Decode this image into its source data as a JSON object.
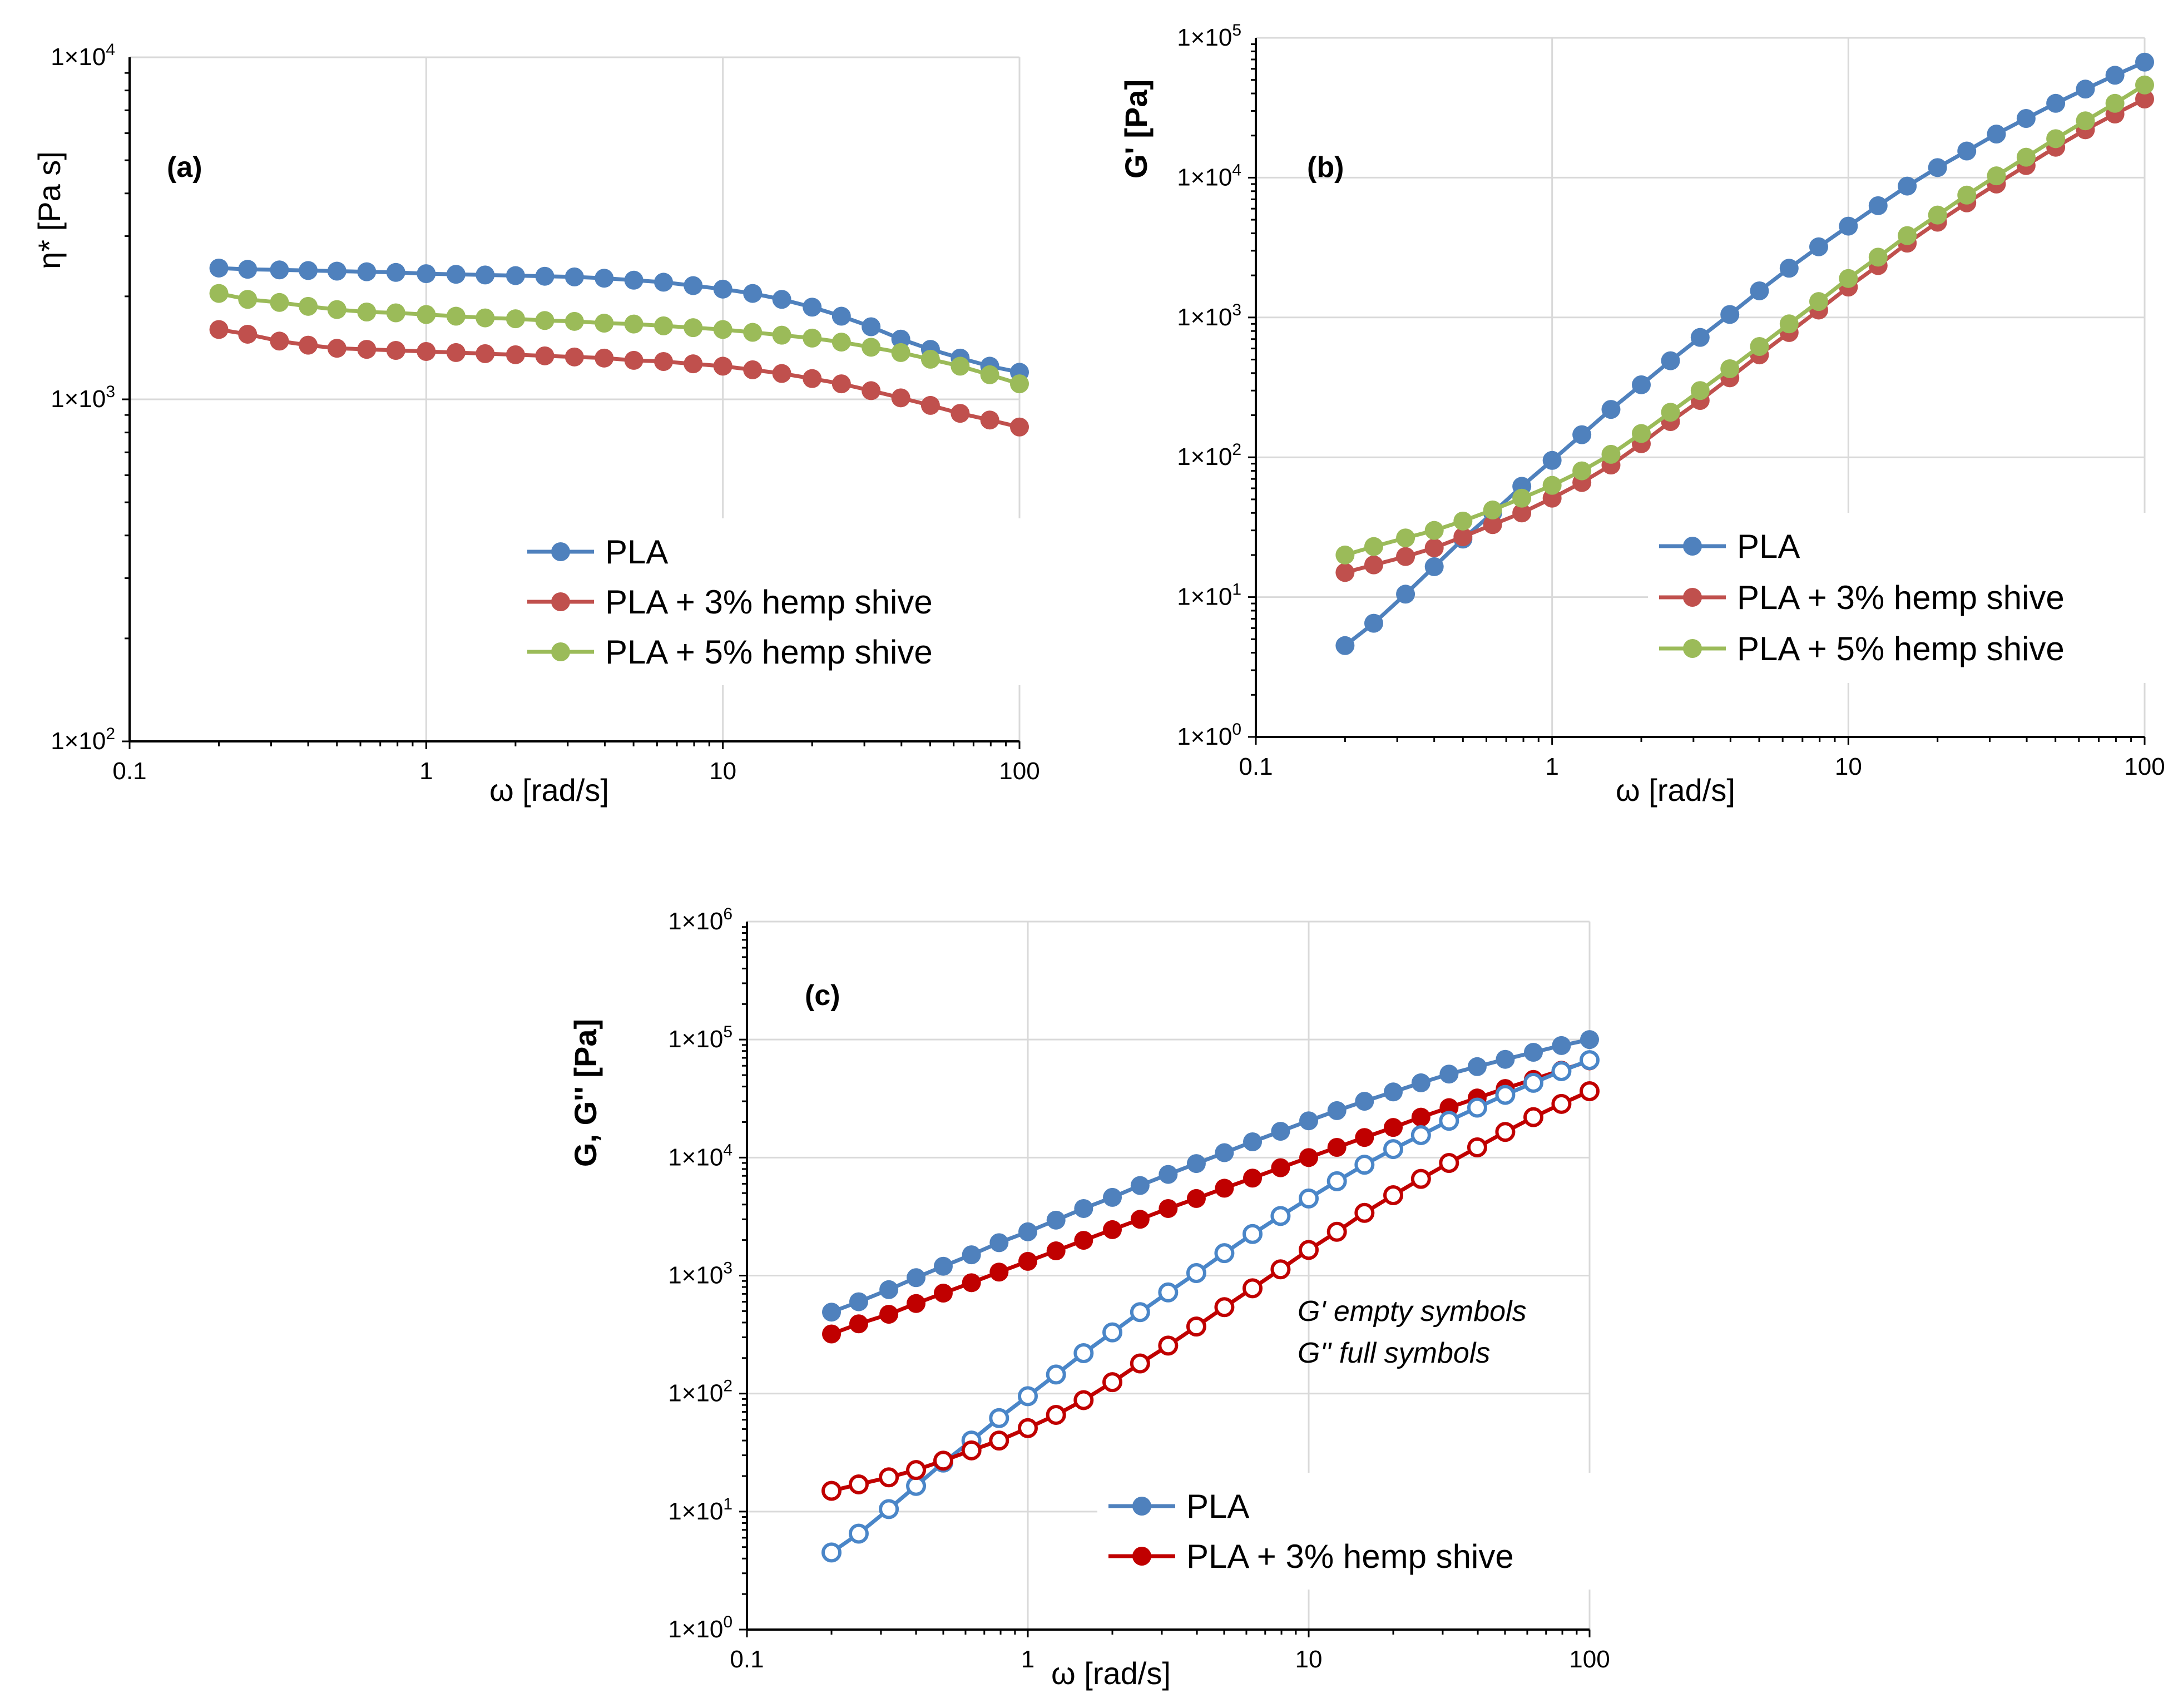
{
  "figure": {
    "panels": {
      "a": {
        "tag": "(a)"
      },
      "b": {
        "tag": "(b)"
      },
      "c": {
        "tag": "(c)",
        "note_line1": "G' empty symbols",
        "note_line2": "G'' full symbols"
      }
    }
  },
  "colors": {
    "pla": "#4f81bd",
    "pla3": "#c0504d",
    "pla5": "#9bbb59",
    "c_pla_full": "#4f81bd",
    "c_pla_empty": "#4a86c8",
    "c_pla3": "#c00000",
    "grid": "#d9d9d9"
  },
  "chart_data": [
    {
      "id": "a",
      "type": "line",
      "title": "(a)",
      "xlabel": "ω [rad/s]",
      "ylabel": "η* [Pa s]",
      "xscale": "log",
      "yscale": "log",
      "xlim": [
        0.1,
        100
      ],
      "ylim": [
        100,
        10000
      ],
      "xticks": [
        {
          "value": 0.1,
          "label": "0.1"
        },
        {
          "value": 1,
          "label": "1"
        },
        {
          "value": 10,
          "label": "10"
        },
        {
          "value": 100,
          "label": "100"
        }
      ],
      "yticks": [
        {
          "value": 100,
          "base": "1×10",
          "exp": "2"
        },
        {
          "value": 1000,
          "base": "1×10",
          "exp": "3"
        },
        {
          "value": 10000,
          "base": "1×10",
          "exp": "4"
        }
      ],
      "grid": true,
      "legend_position": "lower-center",
      "series": [
        {
          "name": "PLA",
          "color": "#4f81bd",
          "marker": "filled",
          "x": [
            0.2,
            0.25,
            0.32,
            0.4,
            0.5,
            0.63,
            0.79,
            1,
            1.26,
            1.58,
            2,
            2.51,
            3.16,
            3.98,
            5.01,
            6.31,
            7.94,
            10,
            12.6,
            15.8,
            20,
            25.1,
            31.6,
            39.8,
            50.1,
            63.1,
            79.4,
            100
          ],
          "y": [
            2420,
            2400,
            2390,
            2380,
            2370,
            2360,
            2350,
            2330,
            2320,
            2310,
            2300,
            2290,
            2280,
            2260,
            2230,
            2200,
            2150,
            2100,
            2040,
            1960,
            1860,
            1750,
            1630,
            1500,
            1400,
            1320,
            1250,
            1200
          ]
        },
        {
          "name": "PLA + 3% hemp shive",
          "color": "#c0504d",
          "marker": "filled",
          "x": [
            0.2,
            0.25,
            0.32,
            0.4,
            0.5,
            0.63,
            0.79,
            1,
            1.26,
            1.58,
            2,
            2.51,
            3.16,
            3.98,
            5.01,
            6.31,
            7.94,
            10,
            12.6,
            15.8,
            20,
            25.1,
            31.6,
            39.8,
            50.1,
            63.1,
            79.4,
            100
          ],
          "y": [
            1600,
            1550,
            1480,
            1440,
            1410,
            1400,
            1390,
            1380,
            1370,
            1360,
            1350,
            1340,
            1330,
            1320,
            1300,
            1290,
            1270,
            1250,
            1220,
            1190,
            1150,
            1110,
            1060,
            1010,
            960,
            910,
            870,
            830
          ]
        },
        {
          "name": "PLA + 5% hemp shive",
          "color": "#9bbb59",
          "marker": "filled",
          "x": [
            0.2,
            0.25,
            0.32,
            0.4,
            0.5,
            0.63,
            0.79,
            1,
            1.26,
            1.58,
            2,
            2.51,
            3.16,
            3.98,
            5.01,
            6.31,
            7.94,
            10,
            12.6,
            15.8,
            20,
            25.1,
            31.6,
            39.8,
            50.1,
            63.1,
            79.4,
            100
          ],
          "y": [
            2040,
            1960,
            1920,
            1870,
            1830,
            1800,
            1790,
            1770,
            1750,
            1730,
            1720,
            1700,
            1690,
            1670,
            1660,
            1640,
            1620,
            1600,
            1570,
            1540,
            1510,
            1470,
            1420,
            1370,
            1310,
            1250,
            1180,
            1110
          ]
        }
      ]
    },
    {
      "id": "b",
      "type": "line",
      "title": "(b)",
      "xlabel": "ω [rad/s]",
      "ylabel": "G' [Pa]",
      "xscale": "log",
      "yscale": "log",
      "xlim": [
        0.1,
        100
      ],
      "ylim": [
        1,
        100000
      ],
      "xticks": [
        {
          "value": 0.1,
          "label": "0.1"
        },
        {
          "value": 1,
          "label": "1"
        },
        {
          "value": 10,
          "label": "10"
        },
        {
          "value": 100,
          "label": "100"
        }
      ],
      "yticks": [
        {
          "value": 1,
          "base": "1×10",
          "exp": "0"
        },
        {
          "value": 10,
          "base": "1×10",
          "exp": "1"
        },
        {
          "value": 100,
          "base": "1×10",
          "exp": "2"
        },
        {
          "value": 1000,
          "base": "1×10",
          "exp": "3"
        },
        {
          "value": 10000,
          "base": "1×10",
          "exp": "4"
        },
        {
          "value": 100000,
          "base": "1×10",
          "exp": "5"
        }
      ],
      "grid": true,
      "legend_position": "lower-right",
      "series": [
        {
          "name": "PLA",
          "color": "#4f81bd",
          "marker": "filled",
          "x": [
            0.2,
            0.25,
            0.32,
            0.4,
            0.5,
            0.63,
            0.79,
            1,
            1.26,
            1.58,
            2,
            2.51,
            3.16,
            3.98,
            5.01,
            6.31,
            7.94,
            10,
            12.6,
            15.8,
            20,
            25.1,
            31.6,
            39.8,
            50.1,
            63.1,
            79.4,
            100
          ],
          "y": [
            4.5,
            6.5,
            10.5,
            16.5,
            26,
            40,
            62,
            95,
            145,
            220,
            330,
            490,
            720,
            1050,
            1550,
            2250,
            3200,
            4500,
            6300,
            8700,
            11800,
            15500,
            20500,
            26500,
            34000,
            43000,
            54000,
            67000
          ]
        },
        {
          "name": "PLA + 3% hemp shive",
          "color": "#c0504d",
          "marker": "filled",
          "x": [
            0.2,
            0.25,
            0.32,
            0.4,
            0.5,
            0.63,
            0.79,
            1,
            1.26,
            1.58,
            2,
            2.51,
            3.16,
            3.98,
            5.01,
            6.31,
            7.94,
            10,
            12.6,
            15.8,
            20,
            25.1,
            31.6,
            39.8,
            50.1,
            63.1,
            79.4,
            100
          ],
          "y": [
            15,
            17,
            19.5,
            22.5,
            27,
            33,
            40,
            51,
            66,
            88,
            125,
            180,
            255,
            370,
            540,
            780,
            1130,
            1650,
            2350,
            3400,
            4800,
            6600,
            9000,
            12200,
            16500,
            22000,
            28500,
            36500
          ]
        },
        {
          "name": "PLA + 5% hemp shive",
          "color": "#9bbb59",
          "marker": "filled",
          "x": [
            0.2,
            0.25,
            0.32,
            0.4,
            0.5,
            0.63,
            0.79,
            1,
            1.26,
            1.58,
            2,
            2.51,
            3.16,
            3.98,
            5.01,
            6.31,
            7.94,
            10,
            12.6,
            15.8,
            20,
            25.1,
            31.6,
            39.8,
            50.1,
            63.1,
            79.4,
            100
          ],
          "y": [
            20,
            23,
            26.5,
            30,
            35,
            42,
            51,
            63,
            80,
            105,
            148,
            210,
            300,
            430,
            620,
            900,
            1300,
            1900,
            2700,
            3850,
            5400,
            7500,
            10300,
            14000,
            19000,
            25500,
            34000,
            46000
          ]
        }
      ]
    },
    {
      "id": "c",
      "type": "line",
      "title": "(c)",
      "xlabel": "ω [rad/s]",
      "ylabel": "G, G'' [Pa]",
      "xscale": "log",
      "yscale": "log",
      "xlim": [
        0.1,
        100
      ],
      "ylim": [
        1,
        1000000
      ],
      "xticks": [
        {
          "value": 0.1,
          "label": "0.1"
        },
        {
          "value": 1,
          "label": "1"
        },
        {
          "value": 10,
          "label": "10"
        },
        {
          "value": 100,
          "label": "100"
        }
      ],
      "yticks": [
        {
          "value": 1,
          "base": "1×10",
          "exp": "0"
        },
        {
          "value": 10,
          "base": "1×10",
          "exp": "1"
        },
        {
          "value": 100,
          "base": "1×10",
          "exp": "2"
        },
        {
          "value": 1000,
          "base": "1×10",
          "exp": "3"
        },
        {
          "value": 10000,
          "base": "1×10",
          "exp": "4"
        },
        {
          "value": 100000,
          "base": "1×10",
          "exp": "5"
        },
        {
          "value": 1000000,
          "base": "1×10",
          "exp": "6"
        }
      ],
      "grid": true,
      "legend_position": "lower-center",
      "legend": [
        {
          "name": "PLA",
          "color": "#4f81bd"
        },
        {
          "name": "PLA + 3% hemp shive",
          "color": "#c00000"
        }
      ],
      "series": [
        {
          "name": "PLA G''",
          "color": "#4f81bd",
          "marker": "filled",
          "x": [
            0.2,
            0.25,
            0.32,
            0.4,
            0.5,
            0.63,
            0.79,
            1,
            1.26,
            1.58,
            2,
            2.51,
            3.16,
            3.98,
            5.01,
            6.31,
            7.94,
            10,
            12.6,
            15.8,
            20,
            25.1,
            31.6,
            39.8,
            50.1,
            63.1,
            79.4,
            100
          ],
          "y": [
            490,
            600,
            760,
            960,
            1200,
            1500,
            1900,
            2350,
            2950,
            3700,
            4600,
            5800,
            7200,
            8900,
            11000,
            13600,
            16700,
            20500,
            25000,
            30000,
            36000,
            43000,
            51000,
            59000,
            68000,
            78000,
            89000,
            100000
          ]
        },
        {
          "name": "PLA + 3% hemp shive G''",
          "color": "#c00000",
          "marker": "filled",
          "x": [
            0.2,
            0.25,
            0.32,
            0.4,
            0.5,
            0.63,
            0.79,
            1,
            1.26,
            1.58,
            2,
            2.51,
            3.16,
            3.98,
            5.01,
            6.31,
            7.94,
            10,
            12.6,
            15.8,
            20,
            25.1,
            31.6,
            39.8,
            50.1,
            63.1,
            79.4,
            100
          ],
          "y": [
            320,
            390,
            470,
            580,
            710,
            870,
            1070,
            1320,
            1620,
            1990,
            2450,
            3000,
            3700,
            4500,
            5500,
            6700,
            8200,
            10000,
            12200,
            14800,
            18000,
            22000,
            26500,
            32000,
            38500,
            46000,
            55000,
            66000
          ]
        },
        {
          "name": "PLA G'",
          "color": "#4a86c8",
          "marker": "empty",
          "x": [
            0.2,
            0.25,
            0.32,
            0.4,
            0.5,
            0.63,
            0.79,
            1,
            1.26,
            1.58,
            2,
            2.51,
            3.16,
            3.98,
            5.01,
            6.31,
            7.94,
            10,
            12.6,
            15.8,
            20,
            25.1,
            31.6,
            39.8,
            50.1,
            63.1,
            79.4,
            100
          ],
          "y": [
            4.5,
            6.5,
            10.5,
            16.5,
            26,
            40,
            62,
            95,
            145,
            220,
            330,
            490,
            720,
            1050,
            1550,
            2250,
            3200,
            4500,
            6300,
            8700,
            11800,
            15500,
            20500,
            26500,
            34000,
            43000,
            54000,
            67000
          ]
        },
        {
          "name": "PLA + 3% hemp shive G'",
          "color": "#c00000",
          "marker": "empty",
          "x": [
            0.2,
            0.25,
            0.32,
            0.4,
            0.5,
            0.63,
            0.79,
            1,
            1.26,
            1.58,
            2,
            2.51,
            3.16,
            3.98,
            5.01,
            6.31,
            7.94,
            10,
            12.6,
            15.8,
            20,
            25.1,
            31.6,
            39.8,
            50.1,
            63.1,
            79.4,
            100
          ],
          "y": [
            15,
            17,
            19.5,
            22.5,
            27,
            33,
            40,
            51,
            66,
            88,
            125,
            180,
            255,
            370,
            540,
            780,
            1130,
            1650,
            2350,
            3400,
            4800,
            6600,
            9000,
            12200,
            16500,
            22000,
            28500,
            36500
          ]
        }
      ]
    }
  ]
}
